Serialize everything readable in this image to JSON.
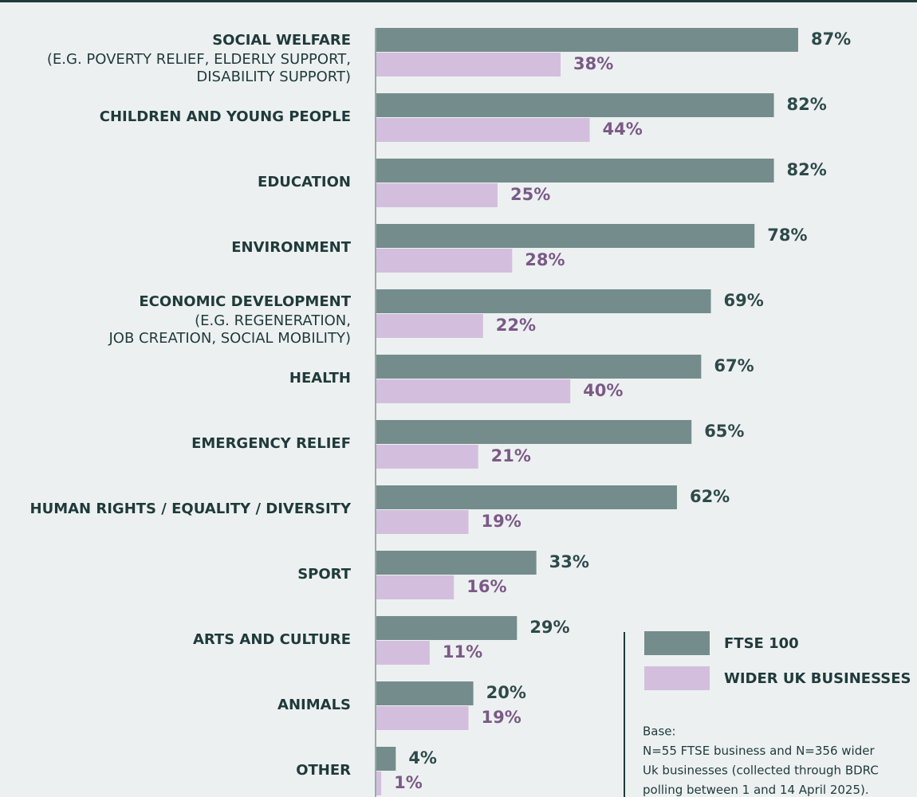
{
  "chart_data": {
    "type": "bar",
    "orientation": "horizontal",
    "categories": [
      "SOCIAL WELFARE",
      "CHILDREN AND YOUNG PEOPLE",
      "EDUCATION",
      "ENVIRONMENT",
      "ECONOMIC DEVELOPMENT",
      "HEALTH",
      "EMERGENCY RELIEF",
      "HUMAN RIGHTS / EQUALITY / DIVERSITY",
      "SPORT",
      "ARTS AND CULTURE",
      "ANIMALS",
      "OTHER"
    ],
    "category_details": [
      [
        "(E.G. POVERTY RELIEF, ELDERLY SUPPORT,",
        "DISABILITY SUPPORT)"
      ],
      null,
      null,
      null,
      [
        "(E.G. REGENERATION,",
        "JOB CREATION, SOCIAL MOBILITY)"
      ],
      null,
      null,
      null,
      null,
      null,
      null,
      null
    ],
    "series": [
      {
        "name": "FTSE 100",
        "color": "#748d8c",
        "label_color": "#2e4a4a",
        "values": [
          87,
          82,
          82,
          78,
          69,
          67,
          65,
          62,
          33,
          29,
          20,
          4
        ],
        "value_labels": [
          "87%",
          "82%",
          "82%",
          "78%",
          "69%",
          "67%",
          "65%",
          "62%",
          "33%",
          "29%",
          "20%",
          "4%"
        ]
      },
      {
        "name": "WIDER UK BUSINESSES",
        "color": "#d3bfdd",
        "label_color": "#7a5a86",
        "values": [
          38,
          44,
          25,
          28,
          22,
          40,
          21,
          19,
          16,
          11,
          19,
          1
        ],
        "value_labels": [
          "38%",
          "44%",
          "25%",
          "28%",
          "22%",
          "40%",
          "21%",
          "19%",
          "16%",
          "11%",
          "19%",
          "1%"
        ]
      }
    ],
    "legend": "bottom-right",
    "note": [
      "Base:",
      "N=55 FTSE business and N=356 wider",
      "Uk businesses (collected through BDRC",
      "polling between 1 and 14 April 2025)."
    ]
  }
}
